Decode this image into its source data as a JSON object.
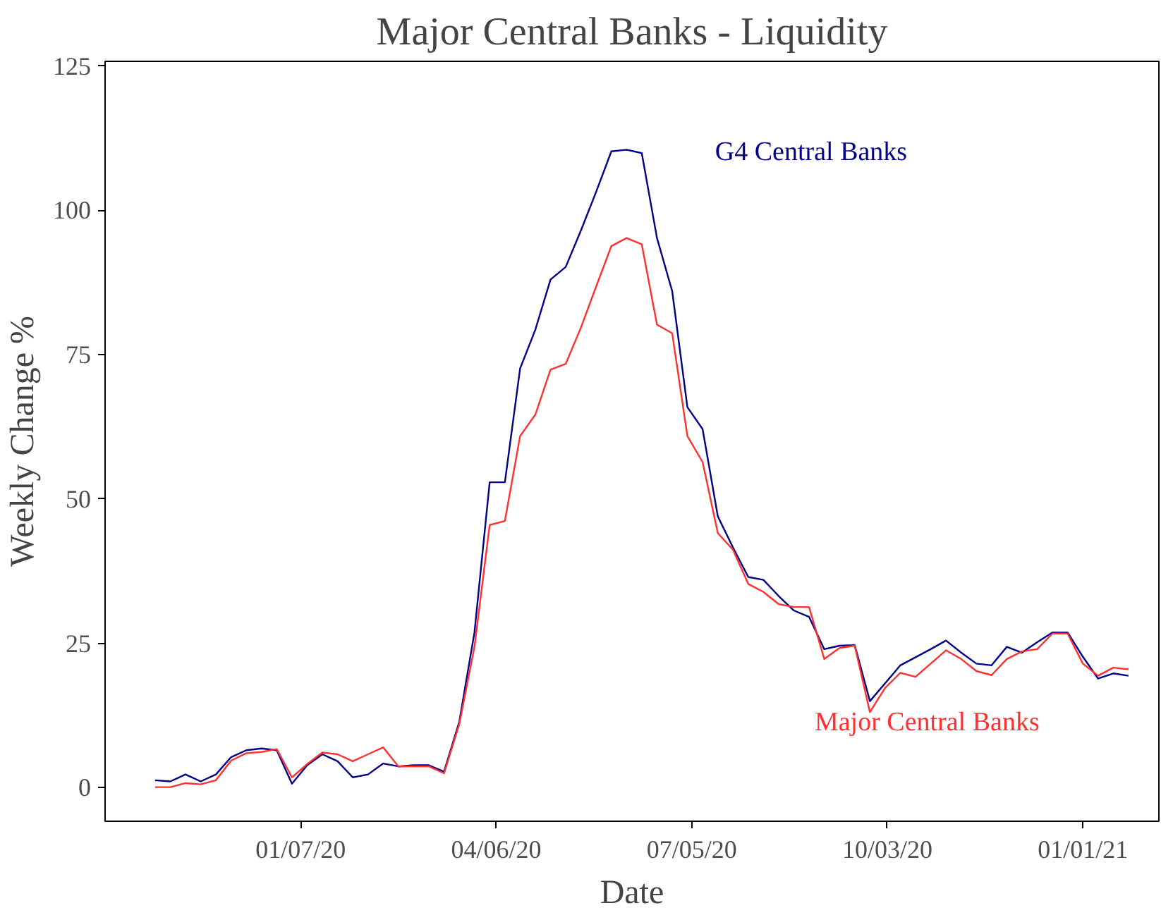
{
  "chart_data": {
    "type": "line",
    "title": "Major Central Banks - Liquidity",
    "xlabel": "Date",
    "ylabel": "Weekly Change %",
    "x": [
      "2019-11-01",
      "2019-11-08",
      "2019-11-15",
      "2019-11-22",
      "2019-11-29",
      "2019-12-06",
      "2019-12-13",
      "2019-12-20",
      "2019-12-27",
      "2020-01-03",
      "2020-01-10",
      "2020-01-17",
      "2020-01-24",
      "2020-01-31",
      "2020-02-07",
      "2020-02-14",
      "2020-02-21",
      "2020-02-28",
      "2020-03-06",
      "2020-03-13",
      "2020-03-20",
      "2020-03-27",
      "2020-04-03",
      "2020-04-10",
      "2020-04-17",
      "2020-04-24",
      "2020-05-01",
      "2020-05-08",
      "2020-05-15",
      "2020-05-22",
      "2020-05-29",
      "2020-06-05",
      "2020-06-12",
      "2020-06-19",
      "2020-06-26",
      "2020-07-03",
      "2020-07-10",
      "2020-07-17",
      "2020-07-24",
      "2020-07-31",
      "2020-08-07",
      "2020-08-14",
      "2020-08-21",
      "2020-08-28",
      "2020-09-04",
      "2020-09-11",
      "2020-09-18",
      "2020-09-25",
      "2020-10-02",
      "2020-10-09",
      "2020-10-16",
      "2020-10-23",
      "2020-10-30",
      "2020-11-06",
      "2020-11-13",
      "2020-11-20",
      "2020-11-27",
      "2020-12-04",
      "2020-12-11",
      "2020-12-18",
      "2020-12-25",
      "2021-01-01",
      "2021-01-08",
      "2021-01-15",
      "2021-01-22"
    ],
    "series": [
      {
        "name": "G4 Central Banks",
        "color": "#00008b",
        "values": [
          1.3,
          1.1,
          2.3,
          1.1,
          2.3,
          5.3,
          6.5,
          6.8,
          6.5,
          0.7,
          3.9,
          5.8,
          4.6,
          1.8,
          2.3,
          4.2,
          3.7,
          3.9,
          3.9,
          2.8,
          11.4,
          26.9,
          52.9,
          52.9,
          72.6,
          79.3,
          88.0,
          90.2,
          96.5,
          103.2,
          110.2,
          110.5,
          109.9,
          95.2,
          86.0,
          65.9,
          62.1,
          47.0,
          41.6,
          36.5,
          36.0,
          33.2,
          30.7,
          29.6,
          24.0,
          24.6,
          24.7,
          15.0,
          18.1,
          21.2,
          22.6,
          24.0,
          25.5,
          23.4,
          21.5,
          21.2,
          24.4,
          23.4,
          25.2,
          26.9,
          26.9,
          22.7,
          18.9,
          19.8,
          19.4
        ]
      },
      {
        "name": "Major Central Banks",
        "color": "#ff3030",
        "values": [
          0.1,
          0.1,
          0.8,
          0.6,
          1.3,
          4.7,
          6.0,
          6.2,
          6.7,
          1.8,
          4.1,
          6.1,
          5.8,
          4.6,
          5.8,
          7.0,
          3.7,
          3.7,
          3.7,
          2.5,
          11.0,
          24.4,
          45.5,
          46.2,
          60.9,
          64.6,
          72.4,
          73.4,
          79.7,
          86.8,
          93.8,
          95.2,
          94.1,
          80.2,
          78.7,
          60.9,
          56.4,
          44.1,
          41.2,
          35.3,
          33.9,
          31.8,
          31.3,
          31.3,
          22.3,
          24.2,
          24.6,
          13.1,
          17.3,
          19.9,
          19.2,
          21.5,
          23.8,
          22.3,
          20.2,
          19.5,
          22.3,
          23.6,
          24.0,
          26.7,
          26.7,
          21.5,
          19.4,
          20.8,
          20.5
        ]
      }
    ],
    "xlim": [
      "2019-10-09",
      "2021-02-05"
    ],
    "xticks": [
      {
        "value": "2020-01-07",
        "label": "01/07/20"
      },
      {
        "value": "2020-04-06",
        "label": "04/06/20"
      },
      {
        "value": "2020-07-05",
        "label": "07/05/20"
      },
      {
        "value": "2020-10-03",
        "label": "10/03/20"
      },
      {
        "value": "2021-01-01",
        "label": "01/01/21"
      }
    ],
    "ylim": [
      -5.8,
      125.8
    ],
    "yticks": [
      0,
      25,
      50,
      75,
      100,
      125
    ],
    "grid": false,
    "legend": false,
    "marker": "none",
    "line_style": "solid"
  }
}
